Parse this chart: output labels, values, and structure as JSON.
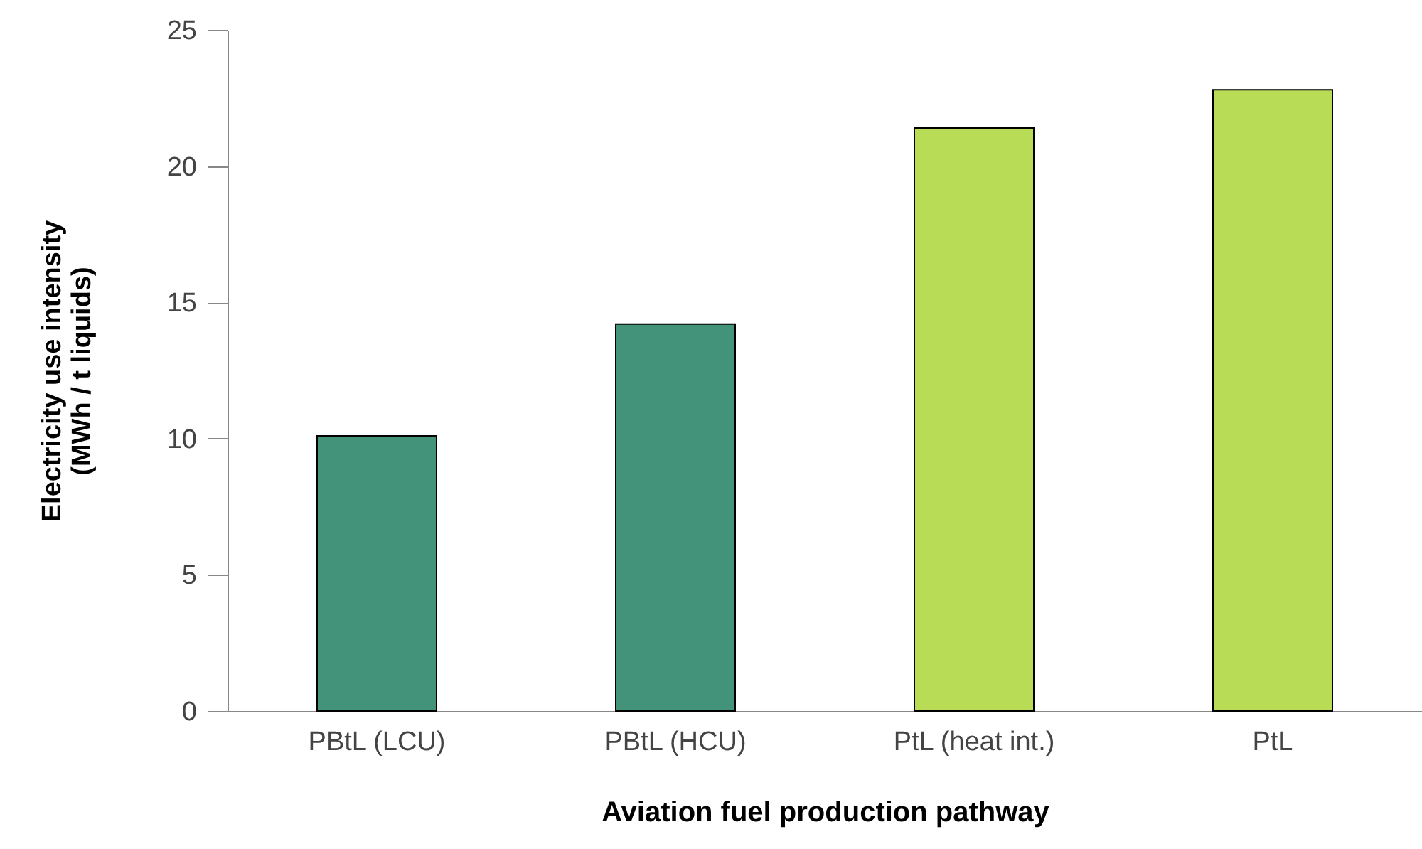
{
  "chart_data": {
    "type": "bar",
    "xlabel": "Aviation fuel production pathway",
    "ylabel": "Electricity use intensity\n(MWh / t liquids)",
    "categories": [
      "PBtL (LCU)",
      "PBtL (HCU)",
      "PtL (heat int.)",
      "PtL"
    ],
    "values": [
      10.1,
      14.2,
      21.4,
      22.8
    ],
    "colors": [
      "#43937a",
      "#43937a",
      "#b9dc57",
      "#b9dc57"
    ],
    "ylim": [
      0,
      25
    ],
    "yticks": [
      0,
      5,
      10,
      15,
      20,
      25
    ],
    "grid": false
  }
}
